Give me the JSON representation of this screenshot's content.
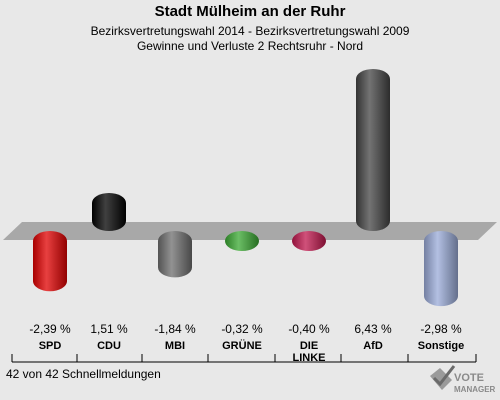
{
  "header": {
    "title": "Stadt Mülheim an der Ruhr",
    "subtitle1": "Bezirksvertretungswahl 2014 - Bezirksvertretungswahl 2009",
    "subtitle2": "Gewinne und Verluste 2 Rechtsruhr - Nord"
  },
  "footer": {
    "status": "42 von 42 Schnellmeldungen"
  },
  "logo": {
    "line1": "VOTE",
    "line2": "MANAGER"
  },
  "chart_data": {
    "type": "bar",
    "title": "Stadt Mülheim an der Ruhr",
    "categories": [
      "SPD",
      "CDU",
      "MBI",
      "GRÜNE",
      "DIE LINKE",
      "AfD",
      "Sonstige"
    ],
    "category_lines": [
      [
        "SPD"
      ],
      [
        "CDU"
      ],
      [
        "MBI"
      ],
      [
        "GRÜNE"
      ],
      [
        "DIE",
        "LINKE"
      ],
      [
        "AfD"
      ],
      [
        "Sonstige"
      ]
    ],
    "values": [
      -2.39,
      1.51,
      -1.84,
      -0.32,
      -0.4,
      6.43,
      -2.98
    ],
    "value_labels": [
      "-2,39 %",
      "1,51 %",
      "-1,84 %",
      "-0,32 %",
      "-0,40 %",
      "6,43 %",
      "-2,98 %"
    ],
    "colors": [
      "#e00000",
      "#000000",
      "#6e6e6e",
      "#3aa832",
      "#c0174d",
      "#444444",
      "#9aabd8"
    ],
    "unit": "%",
    "grid": false,
    "legend": "none"
  }
}
